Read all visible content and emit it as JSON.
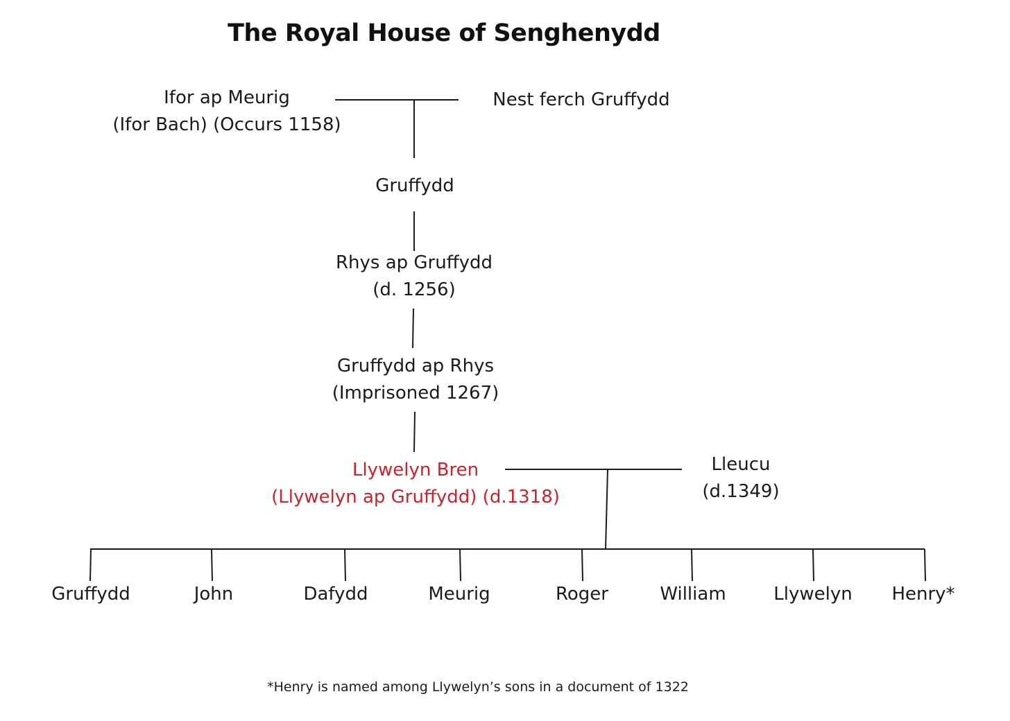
{
  "title": "The Royal House of Senghenydd",
  "ancestors": {
    "ifor": {
      "line1": "Ifor ap Meurig",
      "line2": "(Ifor Bach) (Occurs 1158)"
    },
    "nest": {
      "line1": "Nest ferch Gruffydd"
    },
    "gruffydd": {
      "line1": "Gruffydd"
    },
    "rhys": {
      "line1": "Rhys ap Gruffydd",
      "line2": "(d. 1256)"
    },
    "gruffydd_ap_rhys": {
      "line1": "Gruffydd ap Rhys",
      "line2": "(Imprisoned 1267)"
    },
    "llywelyn_bren": {
      "line1": "Llywelyn Bren",
      "line2": "(Llywelyn ap Gruffydd) (d.1318)"
    },
    "lleucu": {
      "line1": "Lleucu",
      "line2": "(d.1349)"
    }
  },
  "children": [
    {
      "name": "Gruffydd"
    },
    {
      "name": "John"
    },
    {
      "name": "Dafydd"
    },
    {
      "name": "Meurig"
    },
    {
      "name": "Roger"
    },
    {
      "name": "William"
    },
    {
      "name": "Llywelyn"
    },
    {
      "name": "Henry*"
    }
  ],
  "footnote": "*Henry is named among Llywelyn’s sons in a document of 1322",
  "colors": {
    "highlight": "#c3262c",
    "text": "#1a1a1a",
    "line": "#1a1a1a"
  }
}
